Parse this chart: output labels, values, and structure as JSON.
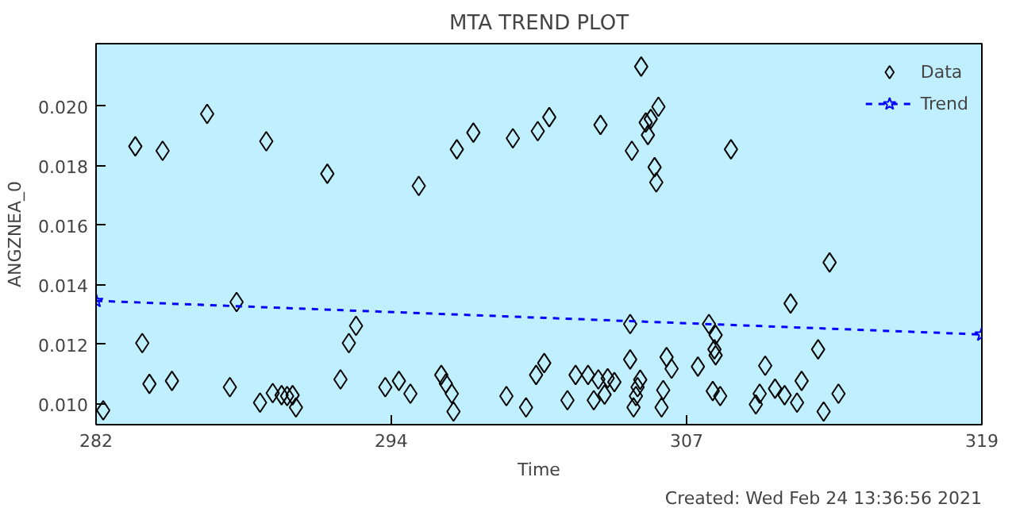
{
  "chart_data": {
    "type": "scatter",
    "title": "MTA TREND PLOT",
    "xlabel": "Time",
    "ylabel": "ANGZNEA_0",
    "annotations": [
      "Created: Wed Feb 24 13:36:56 2021"
    ],
    "xlim": [
      282,
      319
    ],
    "ylim": [
      0.0093,
      0.0221
    ],
    "xticks": [
      {
        "value": 282,
        "label": "282"
      },
      {
        "value": 294.33,
        "label": "294"
      },
      {
        "value": 306.67,
        "label": "307"
      },
      {
        "value": 319,
        "label": "319"
      }
    ],
    "yticks": [
      {
        "value": 0.01,
        "label": "0.010"
      },
      {
        "value": 0.012,
        "label": "0.012"
      },
      {
        "value": 0.014,
        "label": "0.014"
      },
      {
        "value": 0.016,
        "label": "0.016"
      },
      {
        "value": 0.018,
        "label": "0.018"
      },
      {
        "value": 0.02,
        "label": "0.020"
      }
    ],
    "grid": false,
    "legend": "top right",
    "series": [
      {
        "name": "Data",
        "color": "#000000",
        "marker": "diamond",
        "x": [
          282.3,
          283.64,
          283.93,
          284.23,
          284.78,
          285.17,
          286.64,
          287.59,
          287.87,
          288.85,
          289.11,
          289.38,
          289.75,
          289.98,
          290.21,
          290.35,
          291.66,
          292.21,
          292.56,
          292.86,
          294.08,
          294.65,
          295.13,
          295.48,
          296.42,
          296.61,
          296.86,
          296.93,
          297.07,
          297.76,
          299.14,
          299.41,
          299.96,
          300.38,
          300.45,
          300.72,
          300.93,
          301.69,
          302.03,
          302.55,
          302.79,
          302.98,
          303.07,
          303.24,
          303.37,
          303.65,
          304.31,
          304.31,
          304.38,
          304.45,
          304.55,
          304.62,
          304.73,
          304.77,
          304.96,
          305.05,
          305.17,
          305.33,
          305.4,
          305.49,
          305.62,
          305.69,
          305.83,
          306.04,
          307.14,
          307.6,
          307.88,
          307.83,
          307.88,
          307.76,
          308.07,
          308.52,
          309.56,
          309.72,
          309.95,
          310.36,
          310.76,
          311.01,
          311.28,
          311.47,
          312.16,
          312.39,
          312.64,
          313.01
        ],
        "values": [
          0.00978,
          0.01865,
          0.01204,
          0.01067,
          0.0185,
          0.01077,
          0.01974,
          0.01056,
          0.01342,
          0.01004,
          0.01882,
          0.01036,
          0.01029,
          0.01026,
          0.01029,
          0.00988,
          0.01773,
          0.01082,
          0.01204,
          0.01262,
          0.01056,
          0.01077,
          0.01034,
          0.01732,
          0.01097,
          0.01068,
          0.01034,
          0.00974,
          0.01855,
          0.01911,
          0.01026,
          0.01892,
          0.00988,
          0.01097,
          0.01916,
          0.01137,
          0.01963,
          0.01012,
          0.01097,
          0.01097,
          0.01012,
          0.01082,
          0.01937,
          0.01031,
          0.01086,
          0.01073,
          0.01268,
          0.01149,
          0.0185,
          0.00988,
          0.01026,
          0.01056,
          0.01081,
          0.02133,
          0.01945,
          0.01903,
          0.01957,
          0.01795,
          0.01744,
          0.01998,
          0.00988,
          0.01046,
          0.01157,
          0.01118,
          0.01125,
          0.01268,
          0.01231,
          0.01183,
          0.01163,
          0.01043,
          0.01026,
          0.01855,
          0.00998,
          0.01034,
          0.01128,
          0.01051,
          0.01029,
          0.01337,
          0.01004,
          0.01077,
          0.01183,
          0.00974,
          0.01475,
          0.01034
        ]
      },
      {
        "name": "Trend",
        "type": "line",
        "color": "#0000ff",
        "marker": "star",
        "line_style": "dashed",
        "x": [
          282,
          319
        ],
        "values": [
          0.01346,
          0.01233
        ]
      }
    ]
  }
}
